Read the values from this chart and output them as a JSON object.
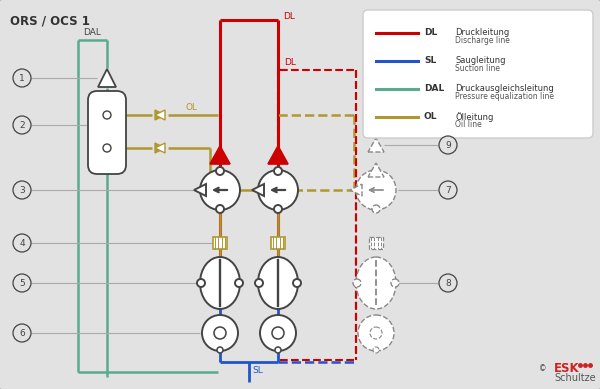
{
  "title": "ORS / OCS 1",
  "bg_color": "#e2e2e2",
  "line_colors": {
    "DL": "#cc0000",
    "SL": "#2255cc",
    "DAL": "#5aaa90",
    "OL": "#b09830"
  },
  "legend_items": [
    {
      "code": "DL",
      "de": "Druckleitung",
      "en": "Discharge line",
      "color": "#cc0000"
    },
    {
      "code": "SL",
      "de": "Saugleitung",
      "en": "Suction line",
      "color": "#2255cc"
    },
    {
      "code": "DAL",
      "de": "Druckausgleichsleitung",
      "en": "Pressure equalization line",
      "color": "#5aaa90"
    },
    {
      "code": "OL",
      "de": "Ölleitung",
      "en": "Oil line",
      "color": "#b09830"
    }
  ]
}
